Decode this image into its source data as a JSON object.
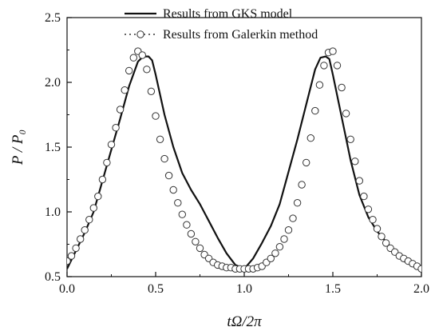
{
  "chart_data": {
    "type": "line",
    "xlabel": "tΩ/2π",
    "ylabel": "P / P₀",
    "xlim": [
      0.0,
      2.0
    ],
    "ylim": [
      0.5,
      2.5
    ],
    "x_ticks": [
      "0.0",
      "0.5",
      "1.0",
      "1.5",
      "2.0"
    ],
    "y_ticks": [
      "0.5",
      "1.0",
      "1.5",
      "2.0",
      "2.5"
    ],
    "legend_position": "top-center",
    "grid": false,
    "series": [
      {
        "name": "Results from GKS model",
        "style": "solid-line",
        "color": "#111111",
        "x": [
          0.0,
          0.05,
          0.1,
          0.15,
          0.2,
          0.25,
          0.3,
          0.35,
          0.4,
          0.43,
          0.46,
          0.48,
          0.5,
          0.55,
          0.6,
          0.65,
          0.7,
          0.75,
          0.8,
          0.85,
          0.9,
          0.95,
          1.0,
          1.05,
          1.1,
          1.15,
          1.2,
          1.25,
          1.3,
          1.35,
          1.4,
          1.43,
          1.46,
          1.48,
          1.5,
          1.55,
          1.6,
          1.65,
          1.7,
          1.75,
          1.8,
          1.85,
          1.9,
          1.95,
          2.0
        ],
        "y": [
          0.56,
          0.7,
          0.84,
          1.0,
          1.24,
          1.48,
          1.72,
          1.97,
          2.16,
          2.2,
          2.2,
          2.17,
          2.06,
          1.75,
          1.5,
          1.3,
          1.17,
          1.06,
          0.93,
          0.8,
          0.68,
          0.59,
          0.56,
          0.64,
          0.76,
          0.89,
          1.06,
          1.31,
          1.56,
          1.83,
          2.1,
          2.19,
          2.2,
          2.18,
          2.06,
          1.73,
          1.4,
          1.13,
          0.96,
          0.85,
          0.77,
          0.69,
          0.62,
          0.59,
          0.56
        ]
      },
      {
        "name": "Results from Galerkin method",
        "style": "open-circles",
        "color": "#333333",
        "x": [
          0.0,
          0.025,
          0.05,
          0.075,
          0.1,
          0.125,
          0.15,
          0.175,
          0.2,
          0.225,
          0.25,
          0.275,
          0.3,
          0.325,
          0.35,
          0.375,
          0.4,
          0.425,
          0.45,
          0.475,
          0.5,
          0.525,
          0.55,
          0.575,
          0.6,
          0.625,
          0.65,
          0.675,
          0.7,
          0.725,
          0.75,
          0.775,
          0.8,
          0.825,
          0.85,
          0.875,
          0.9,
          0.925,
          0.95,
          0.975,
          1.0,
          1.025,
          1.05,
          1.075,
          1.1,
          1.125,
          1.15,
          1.175,
          1.2,
          1.225,
          1.25,
          1.275,
          1.3,
          1.325,
          1.35,
          1.375,
          1.4,
          1.425,
          1.45,
          1.475,
          1.5,
          1.525,
          1.55,
          1.575,
          1.6,
          1.625,
          1.65,
          1.675,
          1.7,
          1.725,
          1.75,
          1.775,
          1.8,
          1.825,
          1.85,
          1.875,
          1.9,
          1.925,
          1.95,
          1.975,
          2.0
        ],
        "y": [
          0.62,
          0.66,
          0.72,
          0.79,
          0.86,
          0.94,
          1.03,
          1.12,
          1.25,
          1.38,
          1.52,
          1.65,
          1.79,
          1.94,
          2.09,
          2.19,
          2.24,
          2.21,
          2.1,
          1.93,
          1.74,
          1.56,
          1.41,
          1.28,
          1.17,
          1.07,
          0.98,
          0.9,
          0.83,
          0.77,
          0.72,
          0.67,
          0.64,
          0.61,
          0.59,
          0.58,
          0.57,
          0.57,
          0.56,
          0.56,
          0.56,
          0.56,
          0.56,
          0.57,
          0.58,
          0.61,
          0.64,
          0.68,
          0.73,
          0.79,
          0.86,
          0.95,
          1.07,
          1.21,
          1.38,
          1.57,
          1.78,
          1.98,
          2.13,
          2.23,
          2.24,
          2.13,
          1.96,
          1.76,
          1.56,
          1.39,
          1.24,
          1.12,
          1.02,
          0.94,
          0.87,
          0.81,
          0.76,
          0.72,
          0.69,
          0.66,
          0.64,
          0.62,
          0.6,
          0.58,
          0.56
        ]
      }
    ]
  }
}
